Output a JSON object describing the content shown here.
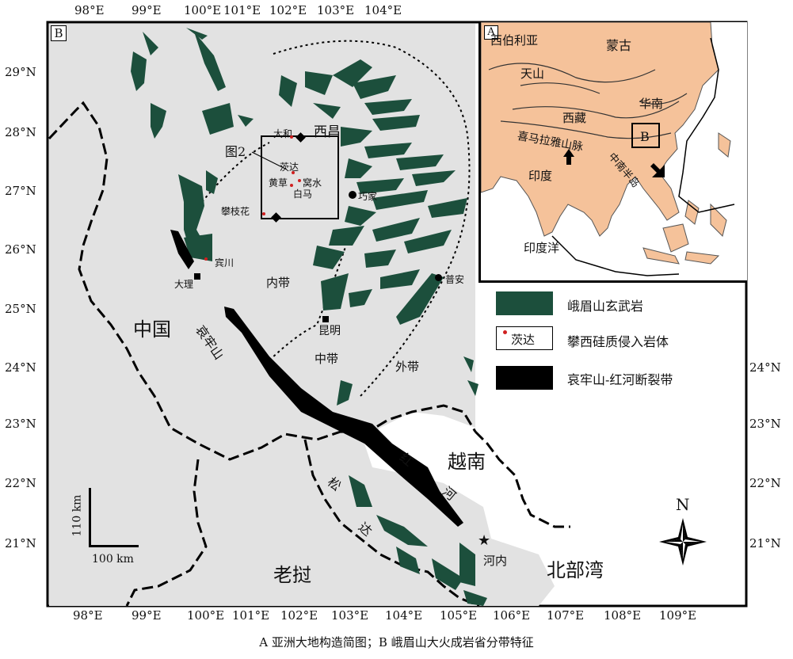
{
  "panel_b": {
    "label": "B",
    "lon_ticks": [
      "98°E",
      "99°E",
      "100°E",
      "101°E",
      "102°E",
      "103°E",
      "104°E"
    ],
    "lon_ticks_bottom": [
      "98°E",
      "99°E",
      "100°E",
      "101°E",
      "102°E",
      "103°E",
      "104°E",
      "105°E",
      "106°E",
      "107°E",
      "108°E",
      "109°E"
    ],
    "lat_ticks_left": [
      "29°N",
      "28°N",
      "27°N",
      "26°N",
      "25°N",
      "24°N",
      "23°N",
      "22°N",
      "21°N"
    ],
    "lat_ticks_right": [
      "24°N",
      "23°N",
      "22°N",
      "21°N"
    ],
    "zones": {
      "inner": "内带",
      "middle": "中带",
      "outer": "外带"
    },
    "regions": {
      "china": "中国",
      "vietnam": "越南",
      "laos": "老挝",
      "gulf": "北部湾"
    },
    "rivers": {
      "ailaoshan_1": "哀",
      "ailaoshan_2": "牢",
      "ailaoshan_3": "山",
      "red_1": "红",
      "red_2": "河",
      "song_1": "松",
      "song_2": "达"
    },
    "places": {
      "xichang": "西昌",
      "dahe": "大和",
      "cida": "茨达",
      "huangcao": "黄草",
      "woshui": "窝水",
      "baima": "白马",
      "qiaojia": "巧家",
      "panzhihua": "攀枝花",
      "binchuan": "宾川",
      "dali": "大理",
      "kunming": "昆明",
      "puan": "普安",
      "hanoi": "河内"
    },
    "inset_box_label": "图2",
    "scale": {
      "vertical": "110 km",
      "horizontal": "100 km"
    },
    "north": "N"
  },
  "panel_a": {
    "label": "A",
    "names": {
      "siberia": "西伯利亚",
      "mongolia": "蒙古",
      "tianshan": "天山",
      "south_china": "华南",
      "tibet": "西藏",
      "himalaya": "喜马拉雅山脉",
      "india": "印度",
      "indochina": "中南半岛",
      "indian_ocean": "印度洋"
    },
    "box_label": "B"
  },
  "legend": {
    "basalt": "峨眉山玄武岩",
    "intrusion_sample": "茨达",
    "intrusion": "攀西硅质侵入岩体",
    "fault": "哀牢山-红河断裂带"
  },
  "colors": {
    "basalt": "#1c4f3c",
    "land_inset": "#f5c29a",
    "map_bg": "#e2e2e2",
    "sample": "#d02020"
  },
  "caption": "A 亚洲大地构造简图；B 峨眉山大火成岩省分带特征"
}
